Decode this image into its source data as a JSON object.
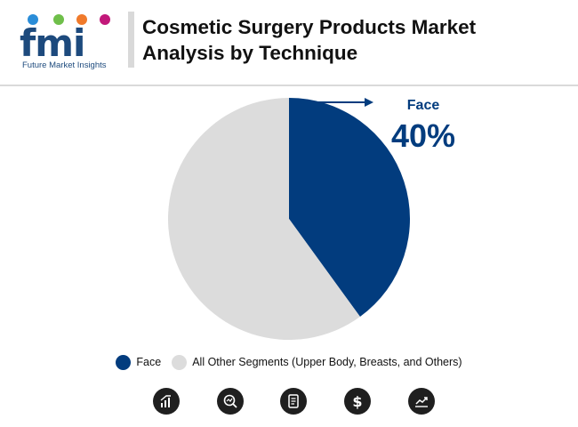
{
  "brand": {
    "logo_text": "fmi",
    "tagline": "Future Market Insights"
  },
  "header": {
    "title": "Cosmetic Surgery Products Market Analysis by Technique"
  },
  "chart_data": {
    "type": "pie",
    "slices": [
      {
        "label": "Face",
        "value": 40,
        "color": "#023c7e"
      },
      {
        "label": "All Other Segments (Upper Body, Breasts, and Others)",
        "value": 60,
        "color": "#dcdcdc"
      }
    ],
    "callout": {
      "label": "Face",
      "value_text": "40%"
    },
    "legend": [
      "Face",
      "All Other Segments (Upper Body, Breasts, and Others)"
    ],
    "legend_position": "bottom"
  },
  "footer_icons": [
    "bar-chart-icon",
    "magnifier-trend-icon",
    "document-icon",
    "dollar-icon",
    "line-growth-icon"
  ]
}
